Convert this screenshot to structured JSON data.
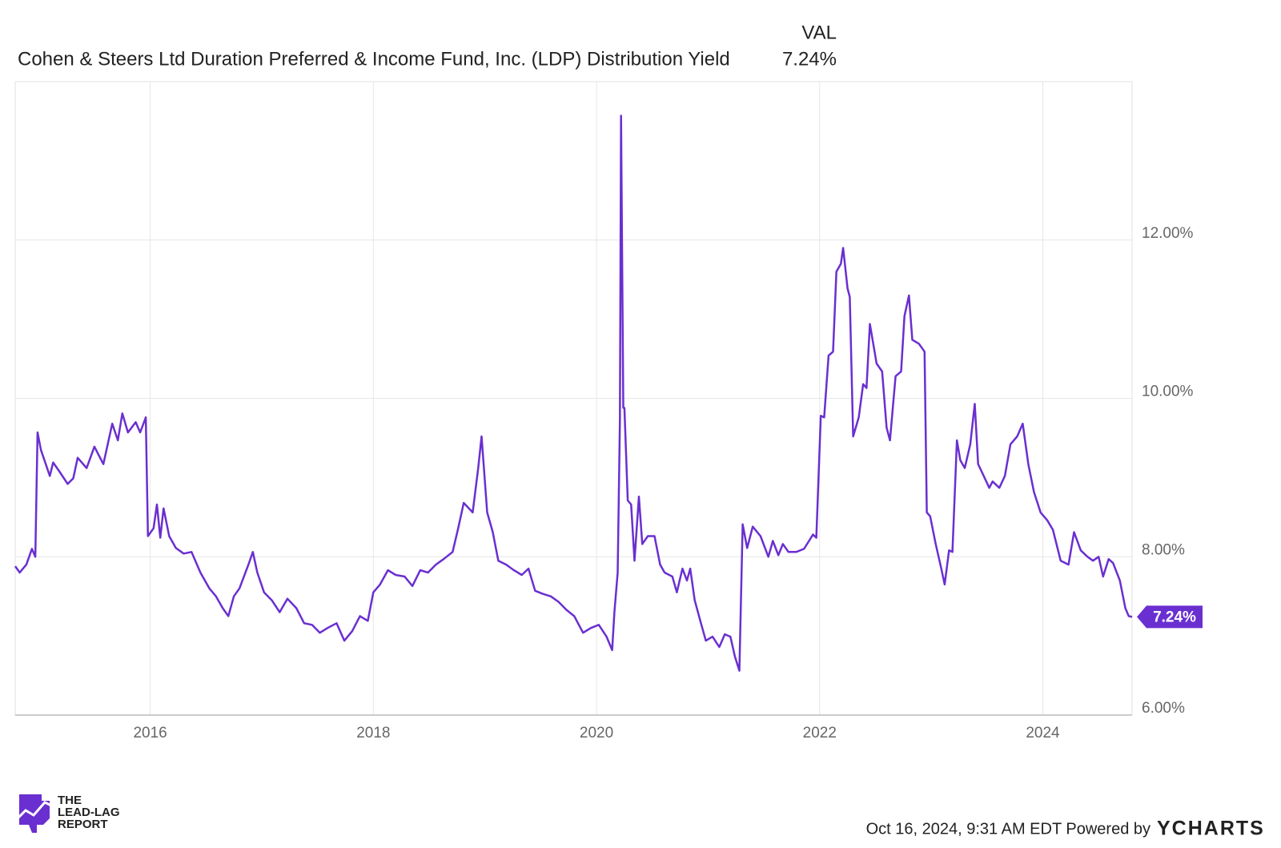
{
  "chart_data": {
    "type": "line",
    "series": [
      {
        "name": "Cohen & Steers Ltd Duration Preferred & Income Fund, Inc. (LDP) Distribution Yield",
        "color": "#6a2fd0",
        "values": [
          7.88,
          7.8,
          7.9,
          8.1,
          8.0,
          9.57,
          9.35,
          9.02,
          9.19,
          9.07,
          8.92,
          8.99,
          9.25,
          9.12,
          9.39,
          9.17,
          9.68,
          9.47,
          9.81,
          9.57,
          9.7,
          9.57,
          9.76,
          8.26,
          8.36,
          8.66,
          8.24,
          8.61,
          8.26,
          8.11,
          8.04,
          8.06,
          7.8,
          7.6,
          7.5,
          7.35,
          7.25,
          7.5,
          7.6,
          7.9,
          8.06,
          7.8,
          7.55,
          7.45,
          7.3,
          7.47,
          7.35,
          7.16,
          7.14,
          7.04,
          7.1,
          7.16,
          6.94,
          7.06,
          7.25,
          7.19,
          7.55,
          7.65,
          7.83,
          7.77,
          7.75,
          7.63,
          7.83,
          7.8,
          7.9,
          7.97,
          8.06,
          8.36,
          8.68,
          8.56,
          9.12,
          9.52,
          8.56,
          8.31,
          7.95,
          7.9,
          7.83,
          7.77,
          7.85,
          7.57,
          7.53,
          7.5,
          7.43,
          7.33,
          7.25,
          7.04,
          7.1,
          7.14,
          6.99,
          6.82,
          7.3,
          7.8,
          9.73,
          13.57,
          9.88,
          9.88,
          8.71,
          8.66,
          7.95,
          8.76,
          8.16,
          8.26,
          8.26,
          7.9,
          7.8,
          7.75,
          7.55,
          7.85,
          7.7,
          7.85,
          7.45,
          7.19,
          6.94,
          6.99,
          6.86,
          7.02,
          6.99,
          6.74,
          6.56,
          8.41,
          8.11,
          8.38,
          8.26,
          8.0,
          8.2,
          8.02,
          8.16,
          8.06,
          8.06,
          8.1,
          8.28,
          8.24,
          9.78,
          9.76,
          10.54,
          10.59,
          11.6,
          11.7,
          11.9,
          11.39,
          11.28,
          9.52,
          9.76,
          10.18,
          10.13,
          10.94,
          10.44,
          10.34,
          9.63,
          9.47,
          10.28,
          10.34,
          11.04,
          11.3,
          10.74,
          10.69,
          10.59,
          8.56,
          8.51,
          8.16,
          7.85,
          7.65,
          8.08,
          8.06,
          9.47,
          9.22,
          9.12,
          9.42,
          9.93,
          9.17,
          9.02,
          8.87,
          8.95,
          8.87,
          9.02,
          9.42,
          9.52,
          9.68,
          9.17,
          8.82,
          8.56,
          8.46,
          8.34,
          7.95,
          7.9,
          8.31,
          8.08,
          8.0,
          7.95,
          8.0,
          7.75,
          7.97,
          7.92,
          7.7,
          7.35,
          7.25,
          7.24
        ]
      }
    ],
    "x": [
      2014.79,
      2014.83,
      2014.89,
      2014.94,
      2014.97,
      2014.99,
      2015.02,
      2015.1,
      2015.13,
      2015.19,
      2015.26,
      2015.31,
      2015.35,
      2015.43,
      2015.5,
      2015.58,
      2015.66,
      2015.71,
      2015.75,
      2015.8,
      2015.87,
      2015.91,
      2015.96,
      2015.98,
      2016.03,
      2016.06,
      2016.09,
      2016.12,
      2016.17,
      2016.23,
      2016.3,
      2016.37,
      2016.45,
      2016.53,
      2016.59,
      2016.65,
      2016.7,
      2016.75,
      2016.8,
      2016.88,
      2016.92,
      2016.96,
      2017.02,
      2017.09,
      2017.16,
      2017.23,
      2017.31,
      2017.38,
      2017.45,
      2017.52,
      2017.59,
      2017.67,
      2017.74,
      2017.81,
      2017.88,
      2017.95,
      2018.0,
      2018.06,
      2018.13,
      2018.2,
      2018.28,
      2018.35,
      2018.42,
      2018.49,
      2018.56,
      2018.63,
      2018.71,
      2018.76,
      2018.81,
      2018.89,
      2018.94,
      2018.97,
      2019.02,
      2019.07,
      2019.12,
      2019.19,
      2019.26,
      2019.33,
      2019.39,
      2019.45,
      2019.52,
      2019.59,
      2019.66,
      2019.73,
      2019.8,
      2019.88,
      2019.95,
      2020.02,
      2020.09,
      2020.14,
      2020.16,
      2020.19,
      2020.21,
      2020.22,
      2020.24,
      2020.25,
      2020.28,
      2020.31,
      2020.34,
      2020.38,
      2020.41,
      2020.46,
      2020.52,
      2020.57,
      2020.61,
      2020.68,
      2020.72,
      2020.77,
      2020.81,
      2020.84,
      2020.88,
      2020.93,
      2020.98,
      2021.04,
      2021.1,
      2021.15,
      2021.2,
      2021.24,
      2021.28,
      2021.31,
      2021.35,
      2021.4,
      2021.47,
      2021.54,
      2021.58,
      2021.63,
      2021.67,
      2021.72,
      2021.79,
      2021.86,
      2021.94,
      2021.97,
      2022.01,
      2022.04,
      2022.08,
      2022.12,
      2022.15,
      2022.19,
      2022.21,
      2022.25,
      2022.27,
      2022.3,
      2022.35,
      2022.39,
      2022.42,
      2022.45,
      2022.51,
      2022.56,
      2022.6,
      2022.63,
      2022.68,
      2022.73,
      2022.76,
      2022.8,
      2022.83,
      2022.89,
      2022.94,
      2022.96,
      2022.99,
      2023.04,
      2023.09,
      2023.12,
      2023.16,
      2023.19,
      2023.23,
      2023.26,
      2023.3,
      2023.35,
      2023.39,
      2023.42,
      2023.47,
      2023.52,
      2023.55,
      2023.61,
      2023.66,
      2023.71,
      2023.77,
      2023.82,
      2023.87,
      2023.92,
      2023.98,
      2024.04,
      2024.09,
      2024.16,
      2024.23,
      2024.28,
      2024.34,
      2024.4,
      2024.45,
      2024.5,
      2024.54,
      2024.59,
      2024.63,
      2024.69,
      2024.74,
      2024.77,
      2024.8
    ],
    "xlim": [
      2014.79,
      2024.8
    ],
    "xticks": [
      2016,
      2018,
      2020,
      2022,
      2024
    ],
    "ylim": [
      6,
      14
    ],
    "yticks": [
      {
        "value": 6,
        "label": "6.00%"
      },
      {
        "value": 8,
        "label": "8.00%"
      },
      {
        "value": 10,
        "label": "10.00%"
      },
      {
        "value": 12,
        "label": "12.00%"
      }
    ],
    "grid": true,
    "value_header": "VAL",
    "current_label": "7.24%",
    "timestamp": "Oct 16, 2024, 9:31 AM EDT Powered by",
    "brand": "YCHARTS",
    "logo": [
      "THE",
      "LEAD-LAG",
      "REPORT"
    ]
  }
}
